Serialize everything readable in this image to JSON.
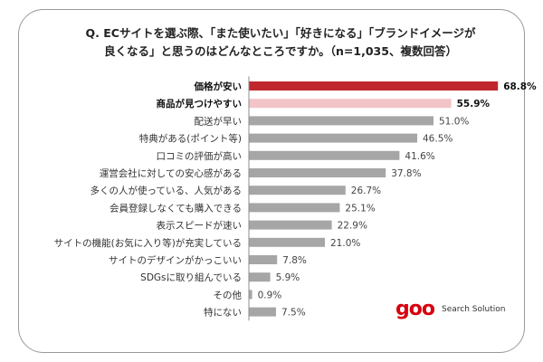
{
  "title": {
    "line1": "Q. ECサイトを選ぶ際、「また使いたい」「好きになる」「ブランドイメージが",
    "line2": "良くなる」と思うのはどんなところですか。（n=1,035、複数回答）"
  },
  "chart_data": {
    "type": "bar",
    "orientation": "horizontal",
    "unit": "%",
    "categories": [
      "価格が安い",
      "商品が見つけやすい",
      "配送が早い",
      "特典がある(ポイント等)",
      "口コミの評価が高い",
      "運営会社に対しての安心感がある",
      "多くの人が使っている、人気がある",
      "会員登録しなくても購入できる",
      "表示スピードが速い",
      "サイトの機能(お気に入り等)が充実している",
      "サイトのデザインがかっこいい",
      "SDGsに取り組んでいる",
      "その他",
      "特にない"
    ],
    "values": [
      68.8,
      55.9,
      51.0,
      46.5,
      41.6,
      37.8,
      26.7,
      25.1,
      22.9,
      21.0,
      7.8,
      5.9,
      0.9,
      7.5
    ],
    "value_labels": [
      "68.8%",
      "55.9%",
      "51.0%",
      "46.5%",
      "41.6%",
      "37.8%",
      "26.7%",
      "25.1%",
      "22.9%",
      "21.0%",
      "7.8%",
      "5.9%",
      "0.9%",
      "7.5%"
    ],
    "highlighted": [
      0,
      1
    ],
    "colors": {
      "primary": "#c0272d",
      "secondary": "#f2c4c7",
      "default": "#a6a6a6",
      "axis": "#8c8c8c"
    },
    "xlim": [
      0,
      75
    ],
    "grid": false,
    "legend": "none"
  },
  "logo": {
    "mark": "goo",
    "text": "Search Solution",
    "color": "#d7000f"
  }
}
